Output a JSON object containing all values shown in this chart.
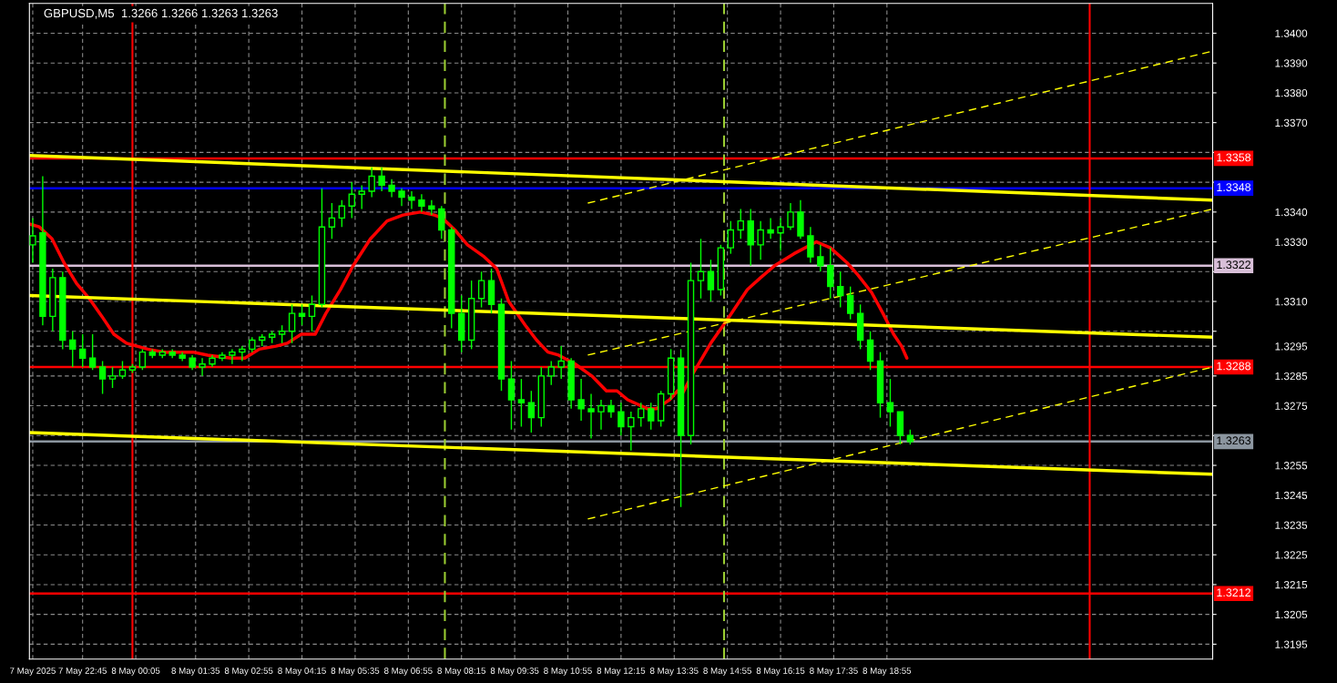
{
  "chart_data": {
    "type": "candlestick",
    "title": "GBPUSD,M5  1.3266 1.3266 1.3263 1.3263",
    "color": "#00ff00",
    "x": [
      "2025-05-07T21:30",
      "2025-05-07T21:45",
      "2025-05-07T22:00",
      "2025-05-07T22:15",
      "2025-05-07T22:30",
      "2025-05-07T22:45",
      "2025-05-07T23:00",
      "2025-05-07T23:15",
      "2025-05-07T23:30",
      "2025-05-07T23:45",
      "2025-05-08T00:00",
      "2025-05-08T00:15",
      "2025-05-08T00:30",
      "2025-05-08T00:45",
      "2025-05-08T01:00",
      "2025-05-08T01:15",
      "2025-05-08T01:30",
      "2025-05-08T01:45",
      "2025-05-08T02:00",
      "2025-05-08T02:15",
      "2025-05-08T02:30",
      "2025-05-08T02:45",
      "2025-05-08T03:00",
      "2025-05-08T03:15",
      "2025-05-08T03:30",
      "2025-05-08T03:45",
      "2025-05-08T04:00",
      "2025-05-08T04:15",
      "2025-05-08T04:30",
      "2025-05-08T04:45",
      "2025-05-08T05:00",
      "2025-05-08T05:15",
      "2025-05-08T05:30",
      "2025-05-08T05:45",
      "2025-05-08T06:00",
      "2025-05-08T06:15",
      "2025-05-08T06:30",
      "2025-05-08T06:45",
      "2025-05-08T07:00",
      "2025-05-08T07:15",
      "2025-05-08T07:30",
      "2025-05-08T07:45",
      "2025-05-08T08:00",
      "2025-05-08T08:15",
      "2025-05-08T08:30",
      "2025-05-08T08:45",
      "2025-05-08T09:00",
      "2025-05-08T09:15",
      "2025-05-08T09:30",
      "2025-05-08T09:45",
      "2025-05-08T10:00",
      "2025-05-08T10:15",
      "2025-05-08T10:30",
      "2025-05-08T10:45",
      "2025-05-08T11:00",
      "2025-05-08T11:15",
      "2025-05-08T11:30",
      "2025-05-08T11:45",
      "2025-05-08T12:00",
      "2025-05-08T12:15",
      "2025-05-08T12:30",
      "2025-05-08T12:45",
      "2025-05-08T13:00",
      "2025-05-08T13:15",
      "2025-05-08T13:30",
      "2025-05-08T13:45",
      "2025-05-08T14:00",
      "2025-05-08T14:15",
      "2025-05-08T14:30",
      "2025-05-08T14:45",
      "2025-05-08T15:00",
      "2025-05-08T15:15",
      "2025-05-08T15:30",
      "2025-05-08T15:45",
      "2025-05-08T16:00",
      "2025-05-08T16:15",
      "2025-05-08T16:30",
      "2025-05-08T16:45",
      "2025-05-08T17:00",
      "2025-05-08T17:15",
      "2025-05-08T17:30",
      "2025-05-08T17:45",
      "2025-05-08T18:00",
      "2025-05-08T18:15",
      "2025-05-08T18:30",
      "2025-05-08T18:45",
      "2025-05-08T19:00",
      "2025-05-08T19:15",
      "2025-05-08T19:30"
    ],
    "ohlc": [
      [
        1.3329,
        1.3338,
        1.3323,
        1.3332
      ],
      [
        1.3333,
        1.3352,
        1.3302,
        1.3305
      ],
      [
        1.3305,
        1.3321,
        1.33,
        1.3318
      ],
      [
        1.3318,
        1.332,
        1.3294,
        1.3297
      ],
      [
        1.3297,
        1.33,
        1.3288,
        1.3294
      ],
      [
        1.3294,
        1.3299,
        1.3288,
        1.3291
      ],
      [
        1.3291,
        1.3299,
        1.3287,
        1.3288
      ],
      [
        1.3288,
        1.329,
        1.3279,
        1.3284
      ],
      [
        1.3284,
        1.3288,
        1.3281,
        1.3285
      ],
      [
        1.3285,
        1.329,
        1.3284,
        1.3287
      ],
      [
        1.3287,
        1.3289,
        1.3286,
        1.3288
      ],
      [
        1.3288,
        1.3294,
        1.3287,
        1.3293
      ],
      [
        1.3293,
        1.3294,
        1.3291,
        1.3292
      ],
      [
        1.3292,
        1.3294,
        1.3291,
        1.3293
      ],
      [
        1.3293,
        1.3294,
        1.3291,
        1.3292
      ],
      [
        1.3292,
        1.3293,
        1.329,
        1.3291
      ],
      [
        1.3291,
        1.3292,
        1.3287,
        1.3288
      ],
      [
        1.3288,
        1.3291,
        1.3285,
        1.3289
      ],
      [
        1.3289,
        1.3292,
        1.3288,
        1.3291
      ],
      [
        1.3291,
        1.3293,
        1.329,
        1.3292
      ],
      [
        1.3292,
        1.3294,
        1.3289,
        1.3293
      ],
      [
        1.3293,
        1.3295,
        1.329,
        1.3294
      ],
      [
        1.3294,
        1.3298,
        1.3293,
        1.3297
      ],
      [
        1.3297,
        1.3299,
        1.3295,
        1.3298
      ],
      [
        1.3298,
        1.33,
        1.3296,
        1.3299
      ],
      [
        1.3299,
        1.3302,
        1.3296,
        1.33
      ],
      [
        1.33,
        1.3309,
        1.3296,
        1.3306
      ],
      [
        1.3306,
        1.3309,
        1.3302,
        1.3305
      ],
      [
        1.3305,
        1.3312,
        1.33,
        1.3309
      ],
      [
        1.3309,
        1.3348,
        1.3308,
        1.3335
      ],
      [
        1.3335,
        1.3343,
        1.3331,
        1.3338
      ],
      [
        1.3338,
        1.3344,
        1.3335,
        1.3342
      ],
      [
        1.3342,
        1.335,
        1.3338,
        1.3346
      ],
      [
        1.3346,
        1.3349,
        1.3341,
        1.3347
      ],
      [
        1.3347,
        1.3355,
        1.3345,
        1.3352
      ],
      [
        1.3352,
        1.3355,
        1.3347,
        1.3349
      ],
      [
        1.3349,
        1.3351,
        1.3345,
        1.3347
      ],
      [
        1.3347,
        1.3348,
        1.3342,
        1.3345
      ],
      [
        1.3345,
        1.3347,
        1.3341,
        1.3344
      ],
      [
        1.3344,
        1.3346,
        1.334,
        1.3342
      ],
      [
        1.3342,
        1.3344,
        1.3339,
        1.3341
      ],
      [
        1.3341,
        1.3342,
        1.3331,
        1.3334
      ],
      [
        1.3334,
        1.3335,
        1.3301,
        1.3306
      ],
      [
        1.3306,
        1.3312,
        1.3293,
        1.3297
      ],
      [
        1.3297,
        1.3317,
        1.3294,
        1.3311
      ],
      [
        1.3311,
        1.332,
        1.3308,
        1.3317
      ],
      [
        1.3317,
        1.3321,
        1.3306,
        1.3309
      ],
      [
        1.3309,
        1.3311,
        1.328,
        1.3284
      ],
      [
        1.3284,
        1.329,
        1.3267,
        1.3277
      ],
      [
        1.3277,
        1.3284,
        1.3268,
        1.3276
      ],
      [
        1.3276,
        1.328,
        1.3266,
        1.3271
      ],
      [
        1.3271,
        1.3288,
        1.3268,
        1.3285
      ],
      [
        1.3285,
        1.329,
        1.3282,
        1.3288
      ],
      [
        1.3288,
        1.3295,
        1.3284,
        1.329
      ],
      [
        1.329,
        1.3291,
        1.3274,
        1.3277
      ],
      [
        1.3277,
        1.3284,
        1.327,
        1.3274
      ],
      [
        1.3274,
        1.3279,
        1.3264,
        1.3273
      ],
      [
        1.3273,
        1.3277,
        1.3267,
        1.3275
      ],
      [
        1.3275,
        1.3277,
        1.3271,
        1.3273
      ],
      [
        1.3273,
        1.3276,
        1.3265,
        1.3268
      ],
      [
        1.3268,
        1.3273,
        1.326,
        1.3271
      ],
      [
        1.3271,
        1.3276,
        1.3268,
        1.3274
      ],
      [
        1.3274,
        1.3276,
        1.3267,
        1.327
      ],
      [
        1.327,
        1.328,
        1.3268,
        1.3279
      ],
      [
        1.3279,
        1.3294,
        1.3277,
        1.3291
      ],
      [
        1.3291,
        1.3294,
        1.3241,
        1.3265
      ],
      [
        1.3265,
        1.3323,
        1.3262,
        1.3317
      ],
      [
        1.3317,
        1.3331,
        1.3311,
        1.332
      ],
      [
        1.332,
        1.3324,
        1.331,
        1.3314
      ],
      [
        1.3314,
        1.3329,
        1.3312,
        1.3328
      ],
      [
        1.3328,
        1.3337,
        1.3326,
        1.3334
      ],
      [
        1.3334,
        1.3341,
        1.3331,
        1.3337
      ],
      [
        1.3337,
        1.3341,
        1.3322,
        1.3329
      ],
      [
        1.3329,
        1.3337,
        1.3324,
        1.3334
      ],
      [
        1.3334,
        1.3338,
        1.3331,
        1.3333
      ],
      [
        1.3333,
        1.3338,
        1.3327,
        1.3335
      ],
      [
        1.3335,
        1.3343,
        1.3334,
        1.334
      ],
      [
        1.334,
        1.3344,
        1.3331,
        1.3332
      ],
      [
        1.3332,
        1.3335,
        1.3323,
        1.3325
      ],
      [
        1.3325,
        1.3329,
        1.332,
        1.3322
      ],
      [
        1.3322,
        1.3328,
        1.3311,
        1.3315
      ],
      [
        1.3315,
        1.332,
        1.3308,
        1.3312
      ],
      [
        1.3312,
        1.3315,
        1.3304,
        1.3306
      ],
      [
        1.3306,
        1.3309,
        1.3294,
        1.3297
      ],
      [
        1.3297,
        1.33,
        1.3287,
        1.329
      ],
      [
        1.329,
        1.3293,
        1.3271,
        1.3276
      ],
      [
        1.3276,
        1.3284,
        1.3268,
        1.3273
      ],
      [
        1.3273,
        1.3273,
        1.3262,
        1.3265
      ],
      [
        1.3265,
        1.3267,
        1.3262,
        1.3263
      ]
    ],
    "series": [
      {
        "type": "line",
        "color": "#ff0000",
        "line_style": "solid",
        "x": [
          "2025-05-07T21:25",
          "2025-05-07T21:40",
          "2025-05-07T21:59",
          "2025-05-07T22:17",
          "2025-05-07T22:36",
          "2025-05-07T22:55",
          "2025-05-07T23:14",
          "2025-05-07T23:32",
          "2025-05-07T23:51",
          "2025-05-08T00:23",
          "2025-05-08T00:47",
          "2025-05-08T01:31",
          "2025-05-08T01:53",
          "2025-05-08T02:28",
          "2025-05-08T02:49",
          "2025-05-08T03:11",
          "2025-05-08T03:36",
          "2025-05-08T03:53",
          "2025-05-08T04:14",
          "2025-05-08T04:35",
          "2025-05-08T04:51",
          "2025-05-08T05:13",
          "2025-05-08T05:32",
          "2025-05-08T05:58",
          "2025-05-08T06:23",
          "2025-05-08T06:47",
          "2025-05-08T07:13",
          "2025-05-08T07:34",
          "2025-05-08T07:46",
          "2025-05-08T08:05",
          "2025-05-08T08:24",
          "2025-05-08T08:49",
          "2025-05-08T09:08",
          "2025-05-08T09:26",
          "2025-05-08T09:51",
          "2025-05-08T10:08",
          "2025-05-08T10:25",
          "2025-05-08T10:41",
          "2025-05-08T11:06",
          "2025-05-08T11:31",
          "2025-05-08T11:53",
          "2025-05-08T12:09",
          "2025-05-08T12:25",
          "2025-05-08T12:55",
          "2025-05-08T13:08",
          "2025-05-08T13:28",
          "2025-05-08T13:40",
          "2025-05-08T13:45",
          "2025-05-08T14:01",
          "2025-05-08T14:17",
          "2025-05-08T14:30",
          "2025-05-08T14:55",
          "2025-05-08T15:25",
          "2025-05-08T15:45",
          "2025-05-08T16:06",
          "2025-05-08T16:35",
          "2025-05-08T17:09",
          "2025-05-08T17:30",
          "2025-05-08T17:55",
          "2025-05-08T18:11",
          "2025-05-08T18:32",
          "2025-05-08T18:49",
          "2025-05-08T19:05",
          "2025-05-08T19:17",
          "2025-05-08T19:25"
        ],
        "values": [
          1.3336,
          1.3335,
          1.3331,
          1.3323,
          1.3316,
          1.3311,
          1.3305,
          1.3299,
          1.3296,
          1.3294,
          1.3293,
          1.3293,
          1.3292,
          1.3291,
          1.3291,
          1.3294,
          1.3295,
          1.3296,
          1.3299,
          1.3299,
          1.3306,
          1.3314,
          1.3322,
          1.3331,
          1.3337,
          1.3339,
          1.334,
          1.3339,
          1.3338,
          1.3334,
          1.3329,
          1.3325,
          1.3321,
          1.331,
          1.3302,
          1.3297,
          1.3293,
          1.3292,
          1.3289,
          1.3285,
          1.328,
          1.328,
          1.3277,
          1.3274,
          1.3274,
          1.3277,
          1.328,
          1.3278,
          1.3285,
          1.3291,
          1.3296,
          1.3304,
          1.3314,
          1.3318,
          1.3322,
          1.3326,
          1.333,
          1.3328,
          1.3323,
          1.3319,
          1.3313,
          1.3306,
          1.3299,
          1.3295,
          1.3291
        ]
      },
      {
        "type": "line",
        "color": "#ffff00",
        "line_style": "solid",
        "x": [
          "2025-05-07T21:25",
          "2025-05-09T03:05"
        ],
        "values": [
          1.3359,
          1.3344
        ]
      },
      {
        "type": "line",
        "color": "#ffff00",
        "line_style": "solid",
        "x": [
          "2025-05-07T21:25",
          "2025-05-09T03:05"
        ],
        "values": [
          1.3312,
          1.3298
        ]
      },
      {
        "type": "line",
        "color": "#ffff00",
        "line_style": "solid",
        "x": [
          "2025-05-07T21:25",
          "2025-05-09T03:05"
        ],
        "values": [
          1.3266,
          1.3252
        ]
      },
      {
        "type": "line",
        "color": "#ffff00",
        "line_style": "dashed",
        "x": [
          "2025-05-08T11:25",
          "2025-05-09T03:05"
        ],
        "values": [
          1.3343,
          1.3394
        ]
      },
      {
        "type": "line",
        "color": "#ffff00",
        "line_style": "dashed",
        "x": [
          "2025-05-08T11:25",
          "2025-05-09T03:05"
        ],
        "values": [
          1.3292,
          1.3341
        ]
      },
      {
        "type": "line",
        "color": "#ffff00",
        "line_style": "dashed",
        "x": [
          "2025-05-08T11:25",
          "2025-05-09T03:05"
        ],
        "values": [
          1.3237,
          1.3288
        ]
      }
    ],
    "ref_lines": [
      {
        "axis": "y",
        "value": 1.3358,
        "label": "1.3358",
        "color": "#ff0000",
        "line_style": "solid"
      },
      {
        "axis": "y",
        "value": 1.3348,
        "label": "1.3348",
        "color": "#0000ff",
        "line_style": "solid"
      },
      {
        "axis": "y",
        "value": 1.3322,
        "label": "1.3322",
        "color": "#d8bfd8",
        "line_style": "solid"
      },
      {
        "axis": "y",
        "value": 1.3288,
        "label": "1.3288",
        "color": "#ff0000",
        "line_style": "solid"
      },
      {
        "axis": "y",
        "value": 1.3263,
        "label": "1.3263",
        "color": "#8c96a0",
        "line_style": "solid"
      },
      {
        "axis": "y",
        "value": 1.3212,
        "label": "1.3212",
        "color": "#ff0000",
        "line_style": "solid"
      },
      {
        "axis": "x",
        "value": "2025-05-08T00:00",
        "color": "#ff0000",
        "line_style": "solid"
      },
      {
        "axis": "x",
        "value": "2025-05-09T00:00",
        "color": "#ff0000",
        "line_style": "solid"
      },
      {
        "axis": "x",
        "value": "2025-05-08T07:50",
        "color": "#9acd32",
        "line_style": "dashed"
      },
      {
        "axis": "x",
        "value": "2025-05-08T14:50",
        "color": "#9acd32",
        "line_style": "dashed"
      }
    ],
    "xlim": [
      "2025-05-07T21:25",
      "2025-05-09T03:05"
    ],
    "xticks": [
      {
        "value": "2025-05-07T21:30",
        "label": "7 May 2025"
      },
      {
        "value": "2025-05-07T22:45",
        "label": "7 May 22:45"
      },
      {
        "value": "2025-05-08T00:05",
        "label": "8 May 00:05"
      },
      {
        "value": "2025-05-08T01:35",
        "label": "8 May 01:35"
      },
      {
        "value": "2025-05-08T02:55",
        "label": "8 May 02:55"
      },
      {
        "value": "2025-05-08T04:15",
        "label": "8 May 04:15"
      },
      {
        "value": "2025-05-08T05:35",
        "label": "8 May 05:35"
      },
      {
        "value": "2025-05-08T06:55",
        "label": "8 May 06:55"
      },
      {
        "value": "2025-05-08T08:15",
        "label": "8 May 08:15"
      },
      {
        "value": "2025-05-08T09:35",
        "label": "8 May 09:35"
      },
      {
        "value": "2025-05-08T10:55",
        "label": "8 May 10:55"
      },
      {
        "value": "2025-05-08T12:15",
        "label": "8 May 12:15"
      },
      {
        "value": "2025-05-08T13:35",
        "label": "8 May 13:35"
      },
      {
        "value": "2025-05-08T14:55",
        "label": "8 May 14:55"
      },
      {
        "value": "2025-05-08T16:15",
        "label": "8 May 16:15"
      },
      {
        "value": "2025-05-08T17:35",
        "label": "8 May 17:35"
      },
      {
        "value": "2025-05-08T18:55",
        "label": "8 May 18:55"
      }
    ],
    "ylim": [
      1.319,
      1.341
    ],
    "yticks": [
      {
        "value": 1.34,
        "label": "1.3400"
      },
      {
        "value": 1.339,
        "label": "1.3390"
      },
      {
        "value": 1.338,
        "label": "1.3380"
      },
      {
        "value": 1.337,
        "label": "1.3370"
      },
      {
        "value": 1.336,
        "label": null
      },
      {
        "value": 1.335,
        "label": null
      },
      {
        "value": 1.334,
        "label": "1.3340"
      },
      {
        "value": 1.333,
        "label": "1.3330"
      },
      {
        "value": 1.332,
        "label": null
      },
      {
        "value": 1.331,
        "label": "1.3310"
      },
      {
        "value": 1.33,
        "label": null
      },
      {
        "value": 1.3295,
        "label": "1.3295"
      },
      {
        "value": 1.3285,
        "label": "1.3285"
      },
      {
        "value": 1.3275,
        "label": "1.3275"
      },
      {
        "value": 1.3265,
        "label": null
      },
      {
        "value": 1.3255,
        "label": "1.3255"
      },
      {
        "value": 1.3245,
        "label": "1.3245"
      },
      {
        "value": 1.3235,
        "label": "1.3235"
      },
      {
        "value": 1.3225,
        "label": "1.3225"
      },
      {
        "value": 1.3215,
        "label": "1.3215"
      },
      {
        "value": 1.3205,
        "label": "1.3205"
      },
      {
        "value": 1.3195,
        "label": "1.3195"
      }
    ],
    "grid": true
  }
}
